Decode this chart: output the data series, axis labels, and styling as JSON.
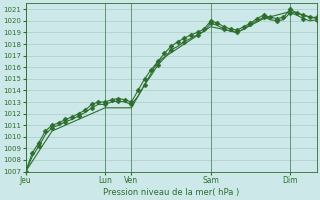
{
  "xlabel": "Pression niveau de la mer( hPa )",
  "bg_color": "#cce8e8",
  "grid_color": "#aacccc",
  "line_color": "#2d6e2d",
  "ylim": [
    1007,
    1021.5
  ],
  "yticks": [
    1007,
    1008,
    1009,
    1010,
    1011,
    1012,
    1013,
    1014,
    1015,
    1016,
    1017,
    1018,
    1019,
    1020,
    1021
  ],
  "day_labels": [
    "Jeu",
    "Lun",
    "Ven",
    "Sam",
    "Dim"
  ],
  "day_positions": [
    0,
    72,
    96,
    168,
    240
  ],
  "total_hours": 264,
  "series1_x": [
    0,
    6,
    12,
    18,
    24,
    30,
    36,
    42,
    48,
    54,
    60,
    66,
    72,
    78,
    84,
    90,
    96,
    102,
    108,
    114,
    120,
    126,
    132,
    138,
    144,
    150,
    156,
    162,
    168,
    174,
    180,
    186,
    192,
    198,
    204,
    210,
    216,
    222,
    228,
    234,
    240,
    246,
    252,
    258,
    264
  ],
  "series1_y": [
    1007.0,
    1008.6,
    1009.5,
    1010.5,
    1011.0,
    1011.2,
    1011.5,
    1011.7,
    1012.0,
    1012.3,
    1012.8,
    1013.0,
    1013.0,
    1013.2,
    1013.3,
    1013.2,
    1013.0,
    1014.0,
    1015.0,
    1015.8,
    1016.5,
    1017.2,
    1017.8,
    1018.2,
    1018.5,
    1018.8,
    1019.0,
    1019.3,
    1020.0,
    1019.8,
    1019.5,
    1019.3,
    1019.2,
    1019.5,
    1019.8,
    1020.2,
    1020.5,
    1020.3,
    1020.2,
    1020.3,
    1021.0,
    1020.7,
    1020.5,
    1020.3,
    1020.3
  ],
  "series2_x": [
    0,
    6,
    12,
    18,
    24,
    30,
    36,
    42,
    48,
    54,
    60,
    66,
    72,
    78,
    84,
    90,
    96,
    102,
    108,
    114,
    120,
    126,
    132,
    138,
    144,
    150,
    156,
    162,
    168,
    174,
    180,
    186,
    192,
    198,
    204,
    210,
    216,
    222,
    228,
    234,
    240,
    246,
    252,
    258,
    264
  ],
  "series2_y": [
    1007.0,
    1008.3,
    1009.2,
    1010.2,
    1010.8,
    1011.0,
    1011.3,
    1011.5,
    1011.8,
    1012.1,
    1012.5,
    1012.8,
    1012.8,
    1013.0,
    1013.1,
    1013.0,
    1012.8,
    1013.5,
    1014.5,
    1015.3,
    1016.2,
    1016.8,
    1017.5,
    1017.8,
    1018.2,
    1018.5,
    1018.8,
    1019.1,
    1019.8,
    1019.6,
    1019.3,
    1019.1,
    1019.0,
    1019.3,
    1019.7,
    1020.0,
    1020.3,
    1020.1,
    1020.0,
    1020.1,
    1020.7,
    1020.5,
    1020.2,
    1020.0,
    1020.1
  ],
  "series3_x": [
    0,
    24,
    48,
    72,
    96,
    120,
    144,
    168,
    192,
    216,
    240,
    264
  ],
  "series3_y": [
    1007.0,
    1010.5,
    1011.5,
    1012.5,
    1012.5,
    1016.5,
    1018.0,
    1019.5,
    1019.0,
    1020.2,
    1020.8,
    1020.2
  ],
  "markers1_x": [
    0,
    6,
    12,
    18,
    24,
    30,
    36,
    42,
    48,
    54,
    60,
    66,
    72,
    78,
    84,
    90,
    96,
    102,
    108,
    114,
    120,
    126,
    132,
    138,
    144,
    150,
    156,
    162,
    168,
    174,
    180,
    186,
    192,
    198,
    204,
    210,
    216,
    222,
    228,
    234,
    240,
    246,
    252,
    258,
    264
  ],
  "markers1_y": [
    1007.0,
    1008.6,
    1009.5,
    1010.5,
    1011.0,
    1011.2,
    1011.5,
    1011.7,
    1012.0,
    1012.3,
    1012.8,
    1013.0,
    1013.0,
    1013.2,
    1013.3,
    1013.2,
    1013.0,
    1014.0,
    1015.0,
    1015.8,
    1016.5,
    1017.2,
    1017.8,
    1018.2,
    1018.5,
    1018.8,
    1019.0,
    1019.3,
    1020.0,
    1019.8,
    1019.5,
    1019.3,
    1019.2,
    1019.5,
    1019.8,
    1020.2,
    1020.5,
    1020.3,
    1020.2,
    1020.3,
    1021.0,
    1020.7,
    1020.5,
    1020.3,
    1020.3
  ],
  "markers2_x": [
    0,
    12,
    24,
    36,
    48,
    60,
    72,
    84,
    96,
    108,
    120,
    132,
    144,
    156,
    168,
    180,
    192,
    204,
    216,
    228,
    240,
    252,
    264
  ],
  "markers2_y": [
    1007.0,
    1009.2,
    1010.8,
    1011.3,
    1011.8,
    1012.5,
    1012.8,
    1013.1,
    1012.8,
    1014.5,
    1016.2,
    1017.5,
    1018.2,
    1018.8,
    1019.8,
    1019.3,
    1019.0,
    1019.7,
    1020.3,
    1020.0,
    1020.7,
    1020.2,
    1020.1
  ]
}
